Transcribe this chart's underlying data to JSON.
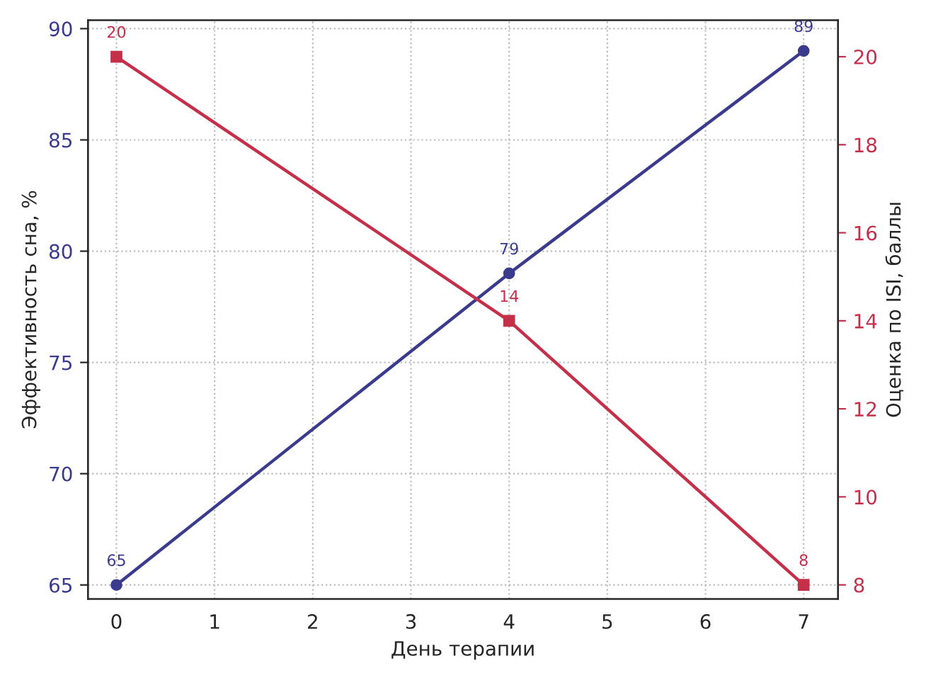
{
  "chart_data": {
    "type": "line",
    "xlabel": "День терапии",
    "ylabel": "Эффективность сна, %",
    "y2label": "Оценка по ISI, баллы",
    "x": [
      0,
      4,
      7
    ],
    "series": [
      {
        "color": "#3b3b8e",
        "values": [
          65,
          79,
          89
        ],
        "marker": "circle"
      },
      {
        "color": "#c4304a",
        "values": [
          20,
          14,
          8
        ],
        "marker": "square",
        "axis": "y2"
      }
    ],
    "xlim": [
      -0.29,
      7.35
    ],
    "xticks": [
      0,
      1,
      2,
      3,
      4,
      5,
      6,
      7
    ],
    "ylim": [
      64.37,
      90.38
    ],
    "yticks": [
      65,
      70,
      75,
      80,
      85,
      90
    ],
    "y2lim": [
      7.68,
      20.83
    ],
    "y2ticks": [
      8,
      10,
      12,
      14,
      16,
      18,
      20
    ],
    "grid": true,
    "data_labels": true,
    "line_style": "solid"
  }
}
